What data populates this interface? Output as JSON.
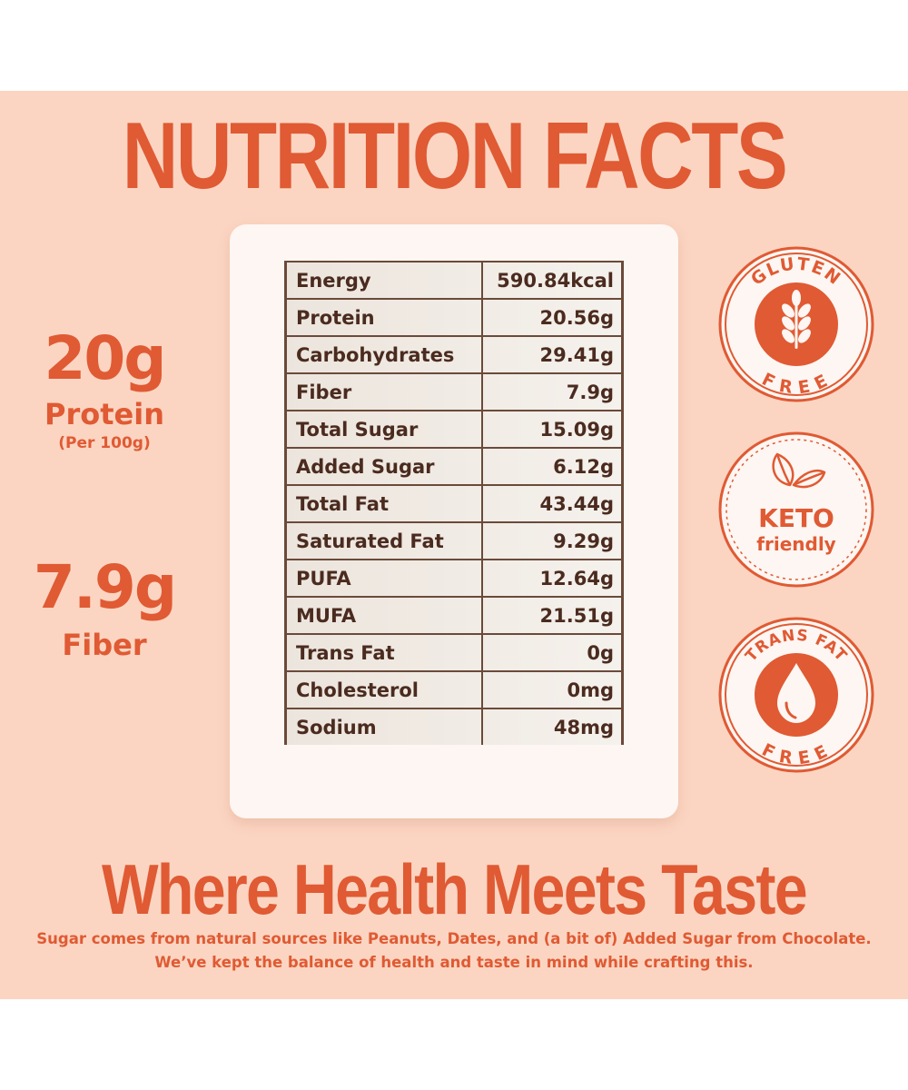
{
  "title": "NUTRITION FACTS",
  "protein_stat": {
    "value": "20g",
    "label": "Protein",
    "note": "(Per 100g)"
  },
  "fiber_stat": {
    "value": "7.9g",
    "label": "Fiber"
  },
  "nutrition_table": [
    {
      "name": "Energy",
      "value": "590.84kcal"
    },
    {
      "name": "Protein",
      "value": "20.56g"
    },
    {
      "name": "Carbohydrates",
      "value": "29.41g"
    },
    {
      "name": "Fiber",
      "value": "7.9g"
    },
    {
      "name": "Total Sugar",
      "value": "15.09g"
    },
    {
      "name": "Added Sugar",
      "value": "6.12g"
    },
    {
      "name": "Total Fat",
      "value": "43.44g"
    },
    {
      "name": "Saturated Fat",
      "value": "9.29g"
    },
    {
      "name": "PUFA",
      "value": "12.64g"
    },
    {
      "name": "MUFA",
      "value": "21.51g"
    },
    {
      "name": "Trans Fat",
      "value": "0g"
    },
    {
      "name": "Cholesterol",
      "value": "0mg"
    },
    {
      "name": "Sodium",
      "value": "48mg"
    }
  ],
  "badges": {
    "gluten": {
      "top": "GLUTEN",
      "bottom": "FREE",
      "icon": "wheat-icon"
    },
    "keto": {
      "line1": "KETO",
      "line2": "friendly",
      "icon": "leaf-icon"
    },
    "transfat": {
      "top": "TRANS FAT",
      "bottom": "FREE",
      "icon": "drop-icon"
    }
  },
  "tagline": "Where Health Meets Taste",
  "description": {
    "line1": "Sugar comes from natural sources like Peanuts, Dates, and (a bit of) Added Sugar from Chocolate.",
    "line2": "We’ve kept the balance of health and taste in mind while crafting this."
  },
  "colors": {
    "accent": "#e05a33",
    "background": "#fbd5c2",
    "card": "#fdf6f2",
    "table_text": "#4b2b1f"
  }
}
